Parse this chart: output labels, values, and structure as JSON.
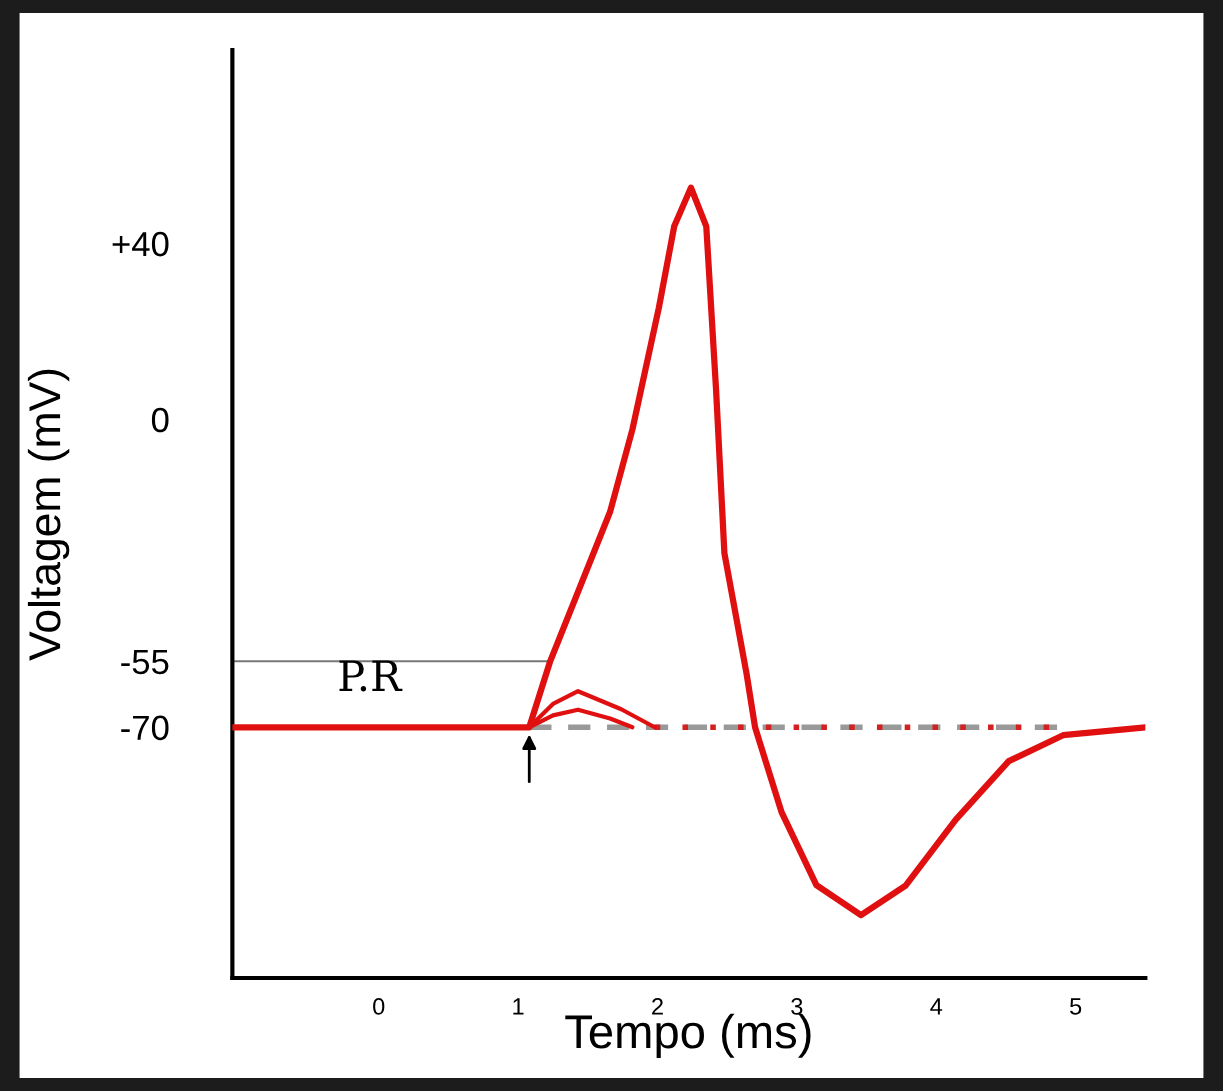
{
  "chart_data": {
    "type": "line",
    "xlabel": "Tempo (ms)",
    "ylabel": "Voltagem (mV)",
    "xlim": [
      -1.05,
      5.5
    ],
    "ylim": [
      -127,
      84
    ],
    "xticks": [
      0,
      1,
      2,
      3,
      4,
      5
    ],
    "yticks": [
      {
        "value": 40,
        "label": "+40"
      },
      0,
      -55,
      -70
    ],
    "annotations": [
      "P.R"
    ],
    "series": [
      {
        "color": "#777777",
        "line_style": "solid",
        "x": [
          -1.05,
          1.23
        ],
        "values": [
          -55,
          -55
        ]
      },
      {
        "color": "#999999",
        "line_style": "dashed",
        "x": [
          1.08,
          4.91
        ],
        "values": [
          -70,
          -70
        ]
      },
      {
        "color": "#d42020",
        "line_style": "dotted",
        "x": [
          1.98,
          4.91
        ],
        "values": [
          -70,
          -70
        ]
      },
      {
        "color": "#e01010",
        "line_style": "solid",
        "x": [
          1.08,
          1.25,
          1.43,
          1.74,
          1.98
        ],
        "values": [
          -70,
          -64.7,
          -61.8,
          -65.9,
          -70
        ]
      },
      {
        "color": "#e01010",
        "line_style": "solid",
        "x": [
          1.08,
          1.25,
          1.43,
          1.66,
          1.82
        ],
        "values": [
          -70,
          -67.3,
          -66,
          -68,
          -70
        ]
      },
      {
        "color": "#e01010",
        "line_style": "solid",
        "x": [
          -1.05,
          1.08,
          1.23,
          1.66,
          1.82,
          2.01,
          2.12,
          2.24,
          2.35,
          2.42,
          2.48,
          2.64,
          2.7,
          2.89,
          3.14,
          3.46,
          3.78,
          4.14,
          4.52,
          4.91,
          5.5
        ],
        "values": [
          -70,
          -70,
          -55,
          -21,
          -2.3,
          25.4,
          43.9,
          52.7,
          43.9,
          6.9,
          -30.4,
          -58,
          -70,
          -89.3,
          -105.9,
          -112.7,
          -106,
          -91,
          -77.7,
          -71.8,
          -70
        ]
      }
    ]
  }
}
